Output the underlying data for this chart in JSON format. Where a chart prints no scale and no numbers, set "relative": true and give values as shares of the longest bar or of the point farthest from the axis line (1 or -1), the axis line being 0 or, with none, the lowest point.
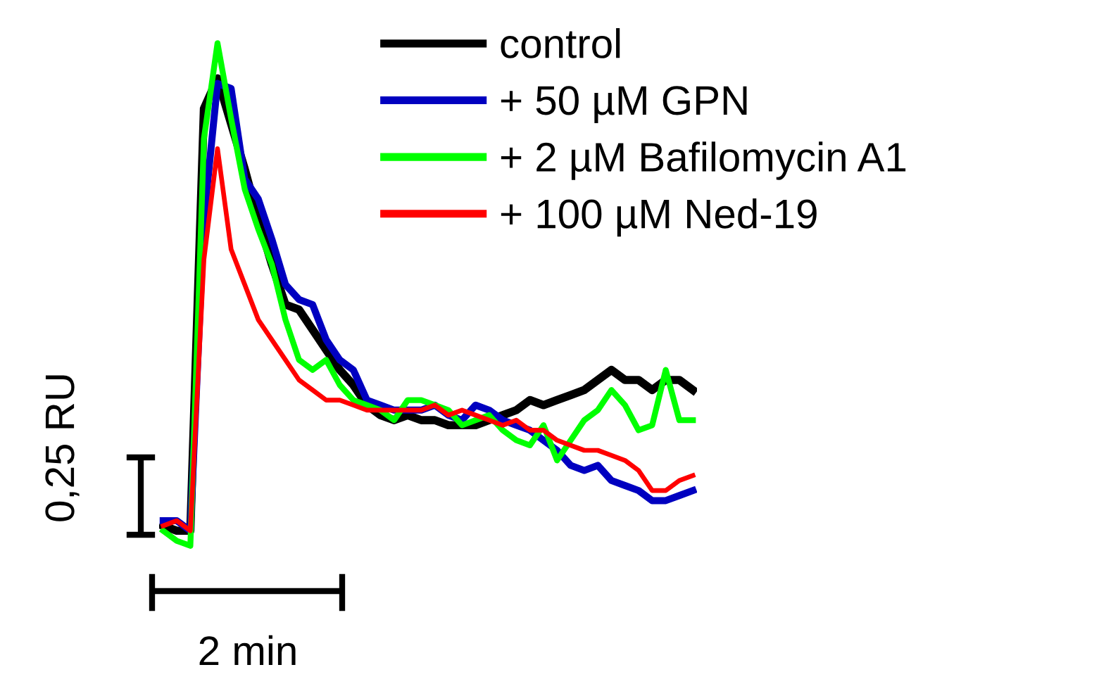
{
  "chart_data": {
    "type": "line",
    "relative": true,
    "legend": "top right",
    "grid": false,
    "marker": "none",
    "line_style": "solid",
    "annotations": [
      "0,25 RU",
      "2 min"
    ],
    "categories": [
      null,
      null,
      null,
      null,
      null,
      null,
      null,
      null,
      null,
      null,
      null,
      null,
      null,
      null,
      null,
      null,
      null,
      null,
      null,
      null,
      null,
      null,
      null,
      null,
      null,
      null,
      null,
      null,
      null,
      null,
      null,
      null,
      null,
      null,
      null,
      null,
      null,
      null,
      null,
      null
    ],
    "series": [
      {
        "name": "control",
        "color": "#000000",
        "values": [
          0.04,
          0.03,
          0.03,
          0.87,
          0.93,
          0.84,
          0.75,
          0.65,
          0.56,
          0.48,
          0.47,
          0.43,
          0.39,
          0.35,
          0.32,
          0.28,
          0.26,
          0.25,
          0.26,
          0.25,
          0.25,
          0.24,
          0.24,
          0.24,
          0.25,
          0.26,
          0.27,
          0.29,
          0.28,
          0.29,
          0.3,
          0.31,
          0.33,
          0.35,
          0.33,
          0.33,
          0.31,
          0.33,
          0.33,
          0.31
        ]
      },
      {
        "name": "+ 50 µM GPN",
        "color": "#0000c0",
        "values": [
          0.05,
          0.05,
          0.03,
          0.65,
          0.92,
          0.91,
          0.73,
          0.69,
          0.61,
          0.52,
          0.49,
          0.48,
          0.41,
          0.37,
          0.35,
          0.29,
          0.28,
          0.27,
          0.27,
          0.27,
          0.28,
          0.26,
          0.25,
          0.28,
          0.27,
          0.25,
          0.24,
          0.23,
          0.21,
          0.19,
          0.16,
          0.15,
          0.16,
          0.13,
          0.12,
          0.11,
          0.09,
          0.09,
          0.1,
          0.11
        ]
      },
      {
        "name": "+ 2 µM Bafilomycin A1",
        "color": "#00ff00",
        "values": [
          0.03,
          0.01,
          0,
          0.81,
          1,
          0.85,
          0.71,
          0.63,
          0.56,
          0.45,
          0.37,
          0.35,
          0.37,
          0.32,
          0.29,
          0.28,
          0.27,
          0.25,
          0.29,
          0.29,
          0.28,
          0.27,
          0.24,
          0.25,
          0.26,
          0.23,
          0.21,
          0.2,
          0.24,
          0.17,
          0.21,
          0.25,
          0.27,
          0.31,
          0.28,
          0.23,
          0.24,
          0.35,
          0.25,
          0.25
        ]
      },
      {
        "name": "+ 100 µM Ned-19",
        "color": "#ff0000",
        "values": [
          0.04,
          0.05,
          0.03,
          0.57,
          0.79,
          0.59,
          0.52,
          0.45,
          0.41,
          0.37,
          0.33,
          0.31,
          0.29,
          0.29,
          0.28,
          0.27,
          0.27,
          0.27,
          0.27,
          0.27,
          0.28,
          0.26,
          0.27,
          0.26,
          0.25,
          0.24,
          0.25,
          0.23,
          0.23,
          0.21,
          0.2,
          0.19,
          0.19,
          0.18,
          0.17,
          0.15,
          0.11,
          0.11,
          0.13,
          0.14
        ]
      }
    ]
  }
}
